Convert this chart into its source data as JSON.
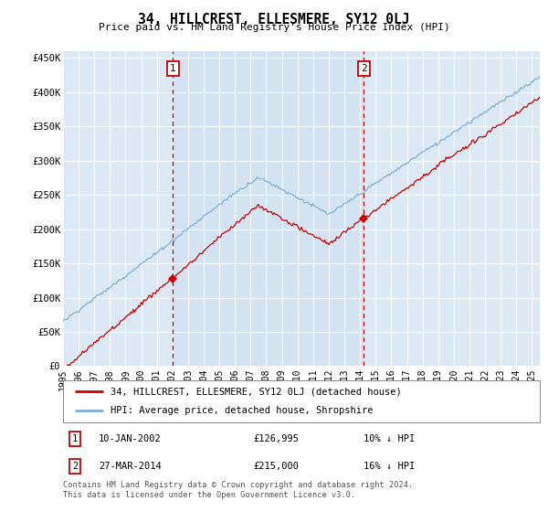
{
  "title": "34, HILLCREST, ELLESMERE, SY12 0LJ",
  "subtitle": "Price paid vs. HM Land Registry's House Price Index (HPI)",
  "ylabel_ticks": [
    "£0",
    "£50K",
    "£100K",
    "£150K",
    "£200K",
    "£250K",
    "£300K",
    "£350K",
    "£400K",
    "£450K"
  ],
  "ytick_values": [
    0,
    50000,
    100000,
    150000,
    200000,
    250000,
    300000,
    350000,
    400000,
    450000
  ],
  "ylim": [
    0,
    460000
  ],
  "xlim_start": 1995.0,
  "xlim_end": 2025.5,
  "bg_color": "#dce8f3",
  "red_line_color": "#cc0000",
  "blue_line_color": "#7aadd4",
  "marker1_date": 2002.04,
  "marker1_value": 126995,
  "marker2_date": 2014.24,
  "marker2_value": 215000,
  "legend_label_red": "34, HILLCREST, ELLESMERE, SY12 0LJ (detached house)",
  "legend_label_blue": "HPI: Average price, detached house, Shropshire",
  "footer": "Contains HM Land Registry data © Crown copyright and database right 2024.\nThis data is licensed under the Open Government Licence v3.0.",
  "grid_color": "#ffffff",
  "vline_color": "#cc0000",
  "shade_color": "#dce8f6",
  "xticklabels": [
    "1995",
    "1996",
    "1997",
    "1998",
    "1999",
    "2000",
    "2001",
    "2002",
    "2003",
    "2004",
    "2005",
    "2006",
    "2007",
    "2008",
    "2009",
    "2010",
    "2011",
    "2012",
    "2013",
    "2014",
    "2015",
    "2016",
    "2017",
    "2018",
    "2019",
    "2020",
    "2021",
    "2022",
    "2023",
    "2024",
    "2025"
  ]
}
